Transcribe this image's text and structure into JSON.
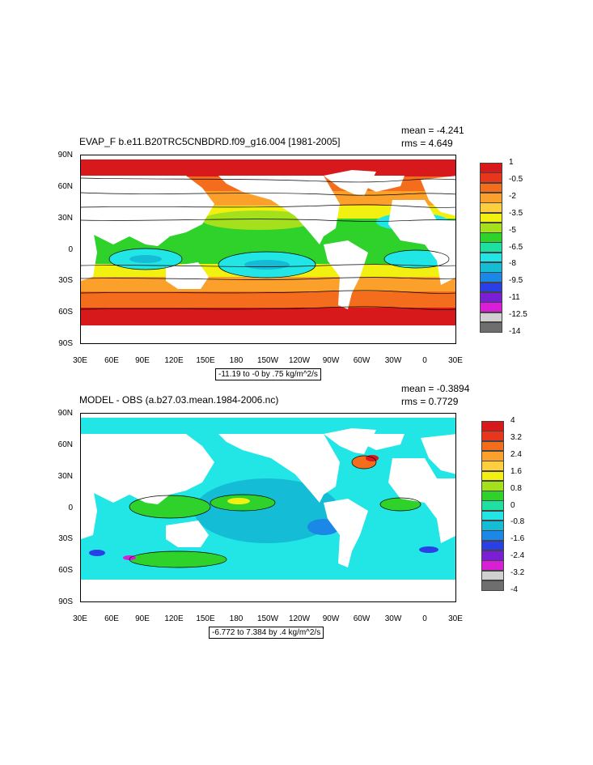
{
  "panels": [
    {
      "title": "EVAP_F b.e11.B20TRC5CNBDRD.f09_g16.004 [1981-2005]",
      "mean": "mean = -4.241",
      "rms": "rms = 4.649",
      "info": "-11.19 to -0 by .75 kg/m^2/s",
      "lat_labels": [
        "90N",
        "60N",
        "30N",
        "0",
        "30S",
        "60S",
        "90S"
      ],
      "lon_labels": [
        "30E",
        "60E",
        "90E",
        "120E",
        "150E",
        "180",
        "150W",
        "120W",
        "90W",
        "60W",
        "30W",
        "0",
        "30E"
      ],
      "colorbar": {
        "labels": [
          "1",
          "-0.5",
          "-2",
          "-3.5",
          "-5",
          "-6.5",
          "-8",
          "-9.5",
          "-11",
          "-12.5",
          "-14"
        ],
        "colors": [
          "#d7191c",
          "#e8361c",
          "#f46d1d",
          "#fba12b",
          "#fdcf3f",
          "#f2f011",
          "#a4e01b",
          "#2fd12b",
          "#1ee0a0",
          "#22e6e6",
          "#14bcd6",
          "#1b87e6",
          "#2b3fe6",
          "#7a1fd6",
          "#d81fd6",
          "#d0d0d0",
          "#6e6e6e"
        ]
      }
    },
    {
      "title": "MODEL - OBS (a.b27.03.mean.1984-2006.nc)",
      "mean": "mean = -0.3894",
      "rms": "rms = 0.7729",
      "info": "-6.772 to 7.384 by .4 kg/m^2/s",
      "lat_labels": [
        "90N",
        "60N",
        "30N",
        "0",
        "30S",
        "60S",
        "90S"
      ],
      "lon_labels": [
        "30E",
        "60E",
        "90E",
        "120E",
        "150E",
        "180",
        "150W",
        "120W",
        "90W",
        "60W",
        "30W",
        "0",
        "30E"
      ],
      "colorbar": {
        "labels": [
          "4",
          "3.2",
          "2.4",
          "1.6",
          "0.8",
          "0",
          "-0.8",
          "-1.6",
          "-2.4",
          "-3.2",
          "-4"
        ],
        "colors": [
          "#d7191c",
          "#e8361c",
          "#f46d1d",
          "#fba12b",
          "#fdcf3f",
          "#f2f011",
          "#a4e01b",
          "#2fd12b",
          "#1ee0a0",
          "#22e6e6",
          "#14bcd6",
          "#1b87e6",
          "#2b3fe6",
          "#7a1fd6",
          "#d81fd6",
          "#d0d0d0",
          "#6e6e6e"
        ]
      }
    }
  ],
  "chart_data": [
    {
      "type": "heatmap",
      "title": "EVAP_F b.e11.B20TRC5CNBDRD.f09_g16.004 [1981-2005]",
      "xlabel": "",
      "ylabel": "",
      "x_ticks": [
        "30E",
        "60E",
        "90E",
        "120E",
        "150E",
        "180",
        "150W",
        "120W",
        "90W",
        "60W",
        "30W",
        "0",
        "30E"
      ],
      "y_ticks": [
        "90N",
        "60N",
        "30N",
        "0",
        "30S",
        "60S",
        "90S"
      ],
      "colorbar_levels": [
        1,
        -0.5,
        -2,
        -3.5,
        -5,
        -6.5,
        -8,
        -9.5,
        -11,
        -12.5,
        -14
      ],
      "stats": {
        "mean": -4.241,
        "rms": 4.649
      },
      "contour_range": {
        "min": -11.19,
        "max": 0,
        "interval": 0.75,
        "units": "kg/m^2/s"
      }
    },
    {
      "type": "heatmap",
      "title": "MODEL - OBS (a.b27.03.mean.1984-2006.nc)",
      "xlabel": "",
      "ylabel": "",
      "x_ticks": [
        "30E",
        "60E",
        "90E",
        "120E",
        "150E",
        "180",
        "150W",
        "120W",
        "90W",
        "60W",
        "30W",
        "0",
        "30E"
      ],
      "y_ticks": [
        "90N",
        "60N",
        "30N",
        "0",
        "30S",
        "60S",
        "90S"
      ],
      "colorbar_levels": [
        4,
        3.2,
        2.4,
        1.6,
        0.8,
        0,
        -0.8,
        -1.6,
        -2.4,
        -3.2,
        -4
      ],
      "stats": {
        "mean": -0.3894,
        "rms": 0.7729
      },
      "contour_range": {
        "min": -6.772,
        "max": 7.384,
        "interval": 0.4,
        "units": "kg/m^2/s"
      }
    }
  ]
}
